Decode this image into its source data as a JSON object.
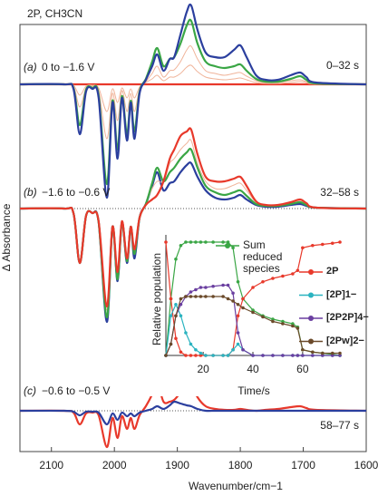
{
  "chart_data": [
    {
      "type": "spectra",
      "title": "2P, CH3CN",
      "y_label": "Δ Absorbance",
      "x_label": "Wavenumber/cm−1",
      "xlim": [
        2150,
        1600
      ],
      "xticks": [
        2100,
        2000,
        1900,
        1800,
        1700,
        1600
      ],
      "x": [
        2150,
        2080,
        2065,
        2055,
        2045,
        2035,
        2025,
        2012,
        2003,
        1995,
        1988,
        1980,
        1974,
        1968,
        1960,
        1950,
        1940,
        1932,
        1922,
        1912,
        1905,
        1895,
        1885,
        1878,
        1868,
        1855,
        1840,
        1825,
        1810,
        1800,
        1790,
        1775,
        1760,
        1740,
        1720,
        1705,
        1695,
        1680,
        1600
      ],
      "panels": [
        {
          "label": "(a)",
          "condition": "0 to −1.6 V",
          "time": "0–32 s",
          "series": [
            {
              "color": "#e8392b",
              "values": [
                0,
                0,
                0,
                0,
                0,
                0,
                0,
                0,
                0,
                0,
                0,
                0,
                0,
                0,
                0,
                0,
                0,
                0,
                0,
                0,
                0,
                0,
                0,
                0,
                0,
                0,
                0,
                0,
                0,
                0,
                0,
                0,
                0,
                0,
                0,
                0,
                0,
                0,
                0
              ]
            },
            {
              "color": "#f0b49a",
              "values": [
                0,
                0,
                -0.01,
                -0.12,
                -0.02,
                -0.01,
                -0.04,
                -0.3,
                -0.05,
                -0.2,
                -0.04,
                -0.15,
                -0.05,
                -0.15,
                -0.03,
                0.02,
                0.06,
                0.1,
                0.04,
                0.08,
                0.08,
                0.12,
                0.19,
                0.21,
                0.14,
                0.08,
                0.06,
                0.05,
                0.06,
                0.07,
                0.05,
                0.02,
                0.01,
                0.01,
                0.02,
                0.03,
                0.02,
                0,
                0
              ]
            },
            {
              "color": "#f0b49a",
              "values": [
                0,
                0,
                -0.02,
                -0.25,
                -0.04,
                -0.02,
                -0.07,
                -0.6,
                -0.1,
                -0.4,
                -0.07,
                -0.3,
                -0.1,
                -0.3,
                -0.05,
                0.03,
                0.12,
                0.2,
                0.08,
                0.15,
                0.16,
                0.25,
                0.38,
                0.42,
                0.28,
                0.15,
                0.12,
                0.1,
                0.12,
                0.13,
                0.09,
                0.04,
                0.02,
                0.02,
                0.04,
                0.05,
                0.03,
                0.01,
                0
              ]
            },
            {
              "color": "#3aa645",
              "values": [
                0,
                0,
                -0.04,
                -0.45,
                -0.06,
                -0.04,
                -0.12,
                -1.1,
                -0.18,
                -0.72,
                -0.13,
                -0.55,
                -0.18,
                -0.52,
                -0.08,
                0.06,
                0.25,
                0.4,
                0.2,
                0.28,
                0.3,
                0.45,
                0.65,
                0.7,
                0.45,
                0.25,
                0.2,
                0.18,
                0.2,
                0.22,
                0.15,
                0.06,
                0.03,
                0.03,
                0.06,
                0.09,
                0.05,
                0.01,
                0
              ]
            },
            {
              "color": "#2b3f9e",
              "values": [
                0,
                0,
                -0.05,
                -0.55,
                -0.08,
                -0.05,
                -0.15,
                -1.25,
                -0.2,
                -0.82,
                -0.15,
                -0.62,
                -0.2,
                -0.6,
                -0.1,
                0.05,
                0.2,
                0.33,
                0.15,
                0.28,
                0.3,
                0.55,
                0.8,
                0.87,
                0.6,
                0.35,
                0.3,
                0.3,
                0.38,
                0.43,
                0.3,
                0.1,
                0.05,
                0.05,
                0.1,
                0.13,
                0.08,
                0.02,
                0
              ]
            }
          ]
        },
        {
          "label": "(b)",
          "condition": "−1.6 to −0.6 V",
          "time": "32–58 s",
          "series": [
            {
              "color": "#2b3f9e",
              "values": [
                0,
                0,
                -0.05,
                -0.6,
                -0.08,
                -0.05,
                -0.15,
                -1.25,
                -0.2,
                -0.8,
                -0.15,
                -0.6,
                -0.2,
                -0.55,
                -0.1,
                0.05,
                0.25,
                0.4,
                0.2,
                0.28,
                0.3,
                0.4,
                0.48,
                0.5,
                0.35,
                0.2,
                0.12,
                0.1,
                0.12,
                0.15,
                0.1,
                0.04,
                0.02,
                0.02,
                0.04,
                0.05,
                0.03,
                0.01,
                0
              ]
            },
            {
              "color": "#f0b49a",
              "values": [
                0,
                0,
                -0.05,
                -0.6,
                -0.08,
                -0.05,
                -0.14,
                -1.12,
                -0.2,
                -0.74,
                -0.14,
                -0.56,
                -0.2,
                -0.48,
                -0.1,
                0.05,
                0.22,
                0.3,
                0.3,
                0.5,
                0.55,
                0.65,
                0.72,
                0.75,
                0.5,
                0.3,
                0.22,
                0.22,
                0.26,
                0.28,
                0.2,
                0.07,
                0.04,
                0.04,
                0.06,
                0.08,
                0.05,
                0.01,
                0
              ]
            },
            {
              "color": "#3aa645",
              "values": [
                0,
                0,
                -0.05,
                -0.6,
                -0.08,
                -0.05,
                -0.15,
                -1.2,
                -0.2,
                -0.78,
                -0.15,
                -0.58,
                -0.2,
                -0.5,
                -0.1,
                0.05,
                0.28,
                0.45,
                0.3,
                0.4,
                0.45,
                0.55,
                0.62,
                0.65,
                0.45,
                0.25,
                0.18,
                0.15,
                0.18,
                0.2,
                0.14,
                0.05,
                0.03,
                0.03,
                0.05,
                0.07,
                0.04,
                0.01,
                0
              ]
            },
            {
              "color": "#e8392b",
              "values": [
                0,
                0,
                -0.05,
                -0.6,
                -0.08,
                -0.05,
                -0.14,
                -1.08,
                -0.2,
                -0.7,
                -0.14,
                -0.55,
                -0.2,
                -0.45,
                -0.1,
                0.04,
                0.1,
                0.15,
                0.3,
                0.55,
                0.65,
                0.8,
                0.85,
                0.87,
                0.6,
                0.35,
                0.3,
                0.3,
                0.33,
                0.35,
                0.25,
                0.08,
                0.04,
                0.04,
                0.07,
                0.1,
                0.06,
                0.01,
                0
              ]
            }
          ]
        },
        {
          "label": "(c)",
          "condition": "−0.6 to −0.5 V",
          "time": "58–77 s",
          "series": [
            {
              "color": "#e8392b",
              "values": [
                0,
                0,
                -0.02,
                -0.15,
                -0.03,
                -0.02,
                -0.05,
                -0.4,
                -0.08,
                -0.3,
                -0.06,
                -0.2,
                -0.08,
                -0.2,
                -0.05,
                0.05,
                0.18,
                0.31,
                0.1,
                0.1,
                0.12,
                0.2,
                0.28,
                0.3,
                0.15,
                0.05,
                0.02,
                0.01,
                0.01,
                0.02,
                0.01,
                0,
                0.01,
                0.02,
                0.04,
                0.05,
                0.03,
                0.01,
                0
              ]
            },
            {
              "color": "#2b3f9e",
              "values": [
                0,
                0,
                -0.01,
                -0.05,
                -0.01,
                -0.01,
                -0.02,
                -0.15,
                -0.03,
                -0.1,
                -0.02,
                -0.06,
                -0.03,
                -0.06,
                -0.02,
                0,
                0.02,
                0.05,
                0.02,
                0.06,
                0.1,
                0.08,
                0.06,
                0.05,
                0.02,
                0,
                0,
                0,
                0,
                0,
                0,
                0,
                0,
                0,
                0,
                0,
                0,
                0,
                0
              ]
            }
          ]
        }
      ]
    },
    {
      "type": "line",
      "x_label": "Time/s",
      "y_label": "Relative population",
      "xlim": [
        5,
        75
      ],
      "xticks": [
        20,
        40,
        60
      ],
      "ylim": [
        0,
        1
      ],
      "x": [
        5,
        7,
        9,
        11,
        13,
        15,
        17,
        19,
        21,
        24,
        28,
        30,
        32,
        34,
        36,
        40,
        44,
        48,
        52,
        56,
        58,
        60,
        64,
        68,
        72,
        75
      ],
      "series": [
        {
          "name": "Sum reduced species",
          "color": "#3aa645",
          "values": [
            0,
            0.5,
            0.85,
            0.97,
            1,
            1,
            1,
            1,
            1,
            1,
            1,
            1,
            0.95,
            0.65,
            0.5,
            0.4,
            0.35,
            0.32,
            0.3,
            0.28,
            0.25,
            0.05,
            0.03,
            0.02,
            0.01,
            0
          ]
        },
        {
          "name": "2P",
          "color": "#e8392b",
          "values": [
            1,
            0.5,
            0.15,
            0.03,
            0,
            0,
            0,
            0,
            0,
            0,
            0,
            0,
            0.05,
            0.35,
            0.5,
            0.6,
            0.65,
            0.68,
            0.7,
            0.72,
            0.75,
            0.95,
            0.97,
            0.98,
            0.99,
            1
          ]
        },
        {
          "name": "[2P]1−",
          "color": "#2bb3c0",
          "values": [
            0,
            0.35,
            0.45,
            0.35,
            0.2,
            0.1,
            0.05,
            0.02,
            0,
            0,
            0,
            0,
            0.05,
            0.1,
            0.05,
            0,
            0,
            0,
            0,
            0,
            0,
            0,
            0,
            0,
            0,
            0
          ]
        },
        {
          "name": "[2P2P]4−",
          "color": "#6a3fa0",
          "values": [
            0,
            0.1,
            0.35,
            0.45,
            0.52,
            0.56,
            0.58,
            0.6,
            0.6,
            0.61,
            0.62,
            0.62,
            0.55,
            0.2,
            0.05,
            0,
            0,
            0,
            0,
            0,
            0,
            0,
            0,
            0,
            0,
            0
          ]
        },
        {
          "name": "[2Pw]2−",
          "color": "#6b4a2a",
          "values": [
            0,
            0.1,
            0.35,
            0.5,
            0.52,
            0.52,
            0.52,
            0.52,
            0.52,
            0.52,
            0.52,
            0.5,
            0.48,
            0.45,
            0.42,
            0.38,
            0.34,
            0.3,
            0.28,
            0.26,
            0.24,
            0.05,
            0.03,
            0.02,
            0.02,
            0.02
          ]
        }
      ]
    }
  ]
}
